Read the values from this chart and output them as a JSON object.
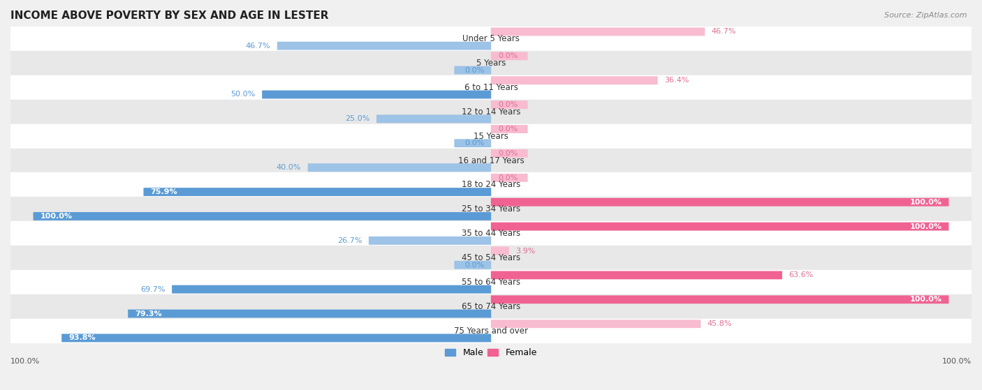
{
  "title": "INCOME ABOVE POVERTY BY SEX AND AGE IN LESTER",
  "source": "Source: ZipAtlas.com",
  "categories": [
    "Under 5 Years",
    "5 Years",
    "6 to 11 Years",
    "12 to 14 Years",
    "15 Years",
    "16 and 17 Years",
    "18 to 24 Years",
    "25 to 34 Years",
    "35 to 44 Years",
    "45 to 54 Years",
    "55 to 64 Years",
    "65 to 74 Years",
    "75 Years and over"
  ],
  "male": [
    46.7,
    0.0,
    50.0,
    25.0,
    0.0,
    40.0,
    75.9,
    100.0,
    26.7,
    0.0,
    69.7,
    79.3,
    93.8
  ],
  "female": [
    46.7,
    0.0,
    36.4,
    0.0,
    0.0,
    0.0,
    0.0,
    100.0,
    100.0,
    3.9,
    63.6,
    100.0,
    45.8
  ],
  "male_color_full": "#5b9bd5",
  "male_color_light": "#9dc3e6",
  "female_color_full": "#f06292",
  "female_color_light": "#f8bbd0",
  "male_label": "Male",
  "female_label": "Female",
  "male_text_color_inside": "#ffffff",
  "male_text_color_outside": "#5b9bd5",
  "female_text_color_inside": "#ffffff",
  "female_text_color_outside": "#e07090",
  "bg_color": "#f0f0f0",
  "row_bg_white": "#ffffff",
  "row_bg_light": "#e8e8e8",
  "title_fontsize": 11,
  "label_fontsize": 8.5,
  "value_fontsize": 8,
  "legend_fontsize": 9
}
